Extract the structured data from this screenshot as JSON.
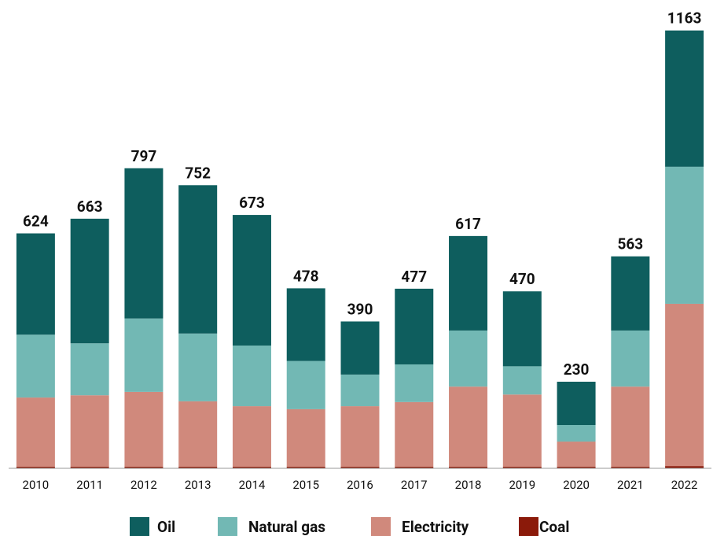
{
  "chart_data": {
    "type": "stacked_bar",
    "categories": [
      "2010",
      "2011",
      "2012",
      "2013",
      "2014",
      "2015",
      "2016",
      "2017",
      "2018",
      "2019",
      "2020",
      "2021",
      "2022"
    ],
    "series": [
      {
        "name": "Oil",
        "color": "#0e5e5e",
        "values": [
          269,
          331,
          399,
          394,
          347,
          193,
          141,
          201,
          251,
          199,
          115,
          197,
          362
        ]
      },
      {
        "name": "Natural gas",
        "color": "#72b8b4",
        "values": [
          167,
          138,
          195,
          180,
          161,
          128,
          84,
          100,
          149,
          75,
          44,
          149,
          364
        ]
      },
      {
        "name": "Electricity",
        "color": "#d0897c",
        "values": [
          184,
          190,
          199,
          174,
          161,
          153,
          161,
          172,
          213,
          192,
          67,
          213,
          431
        ]
      },
      {
        "name": "Coal",
        "color": "#8b1a0a",
        "values": [
          4,
          4,
          4,
          4,
          4,
          4,
          4,
          4,
          4,
          4,
          4,
          4,
          6
        ]
      }
    ],
    "totals": [
      624,
      663,
      797,
      752,
      673,
      478,
      390,
      477,
      617,
      470,
      230,
      563,
      1163
    ],
    "ylim": [
      0,
      1200
    ],
    "legend": "bottom"
  }
}
